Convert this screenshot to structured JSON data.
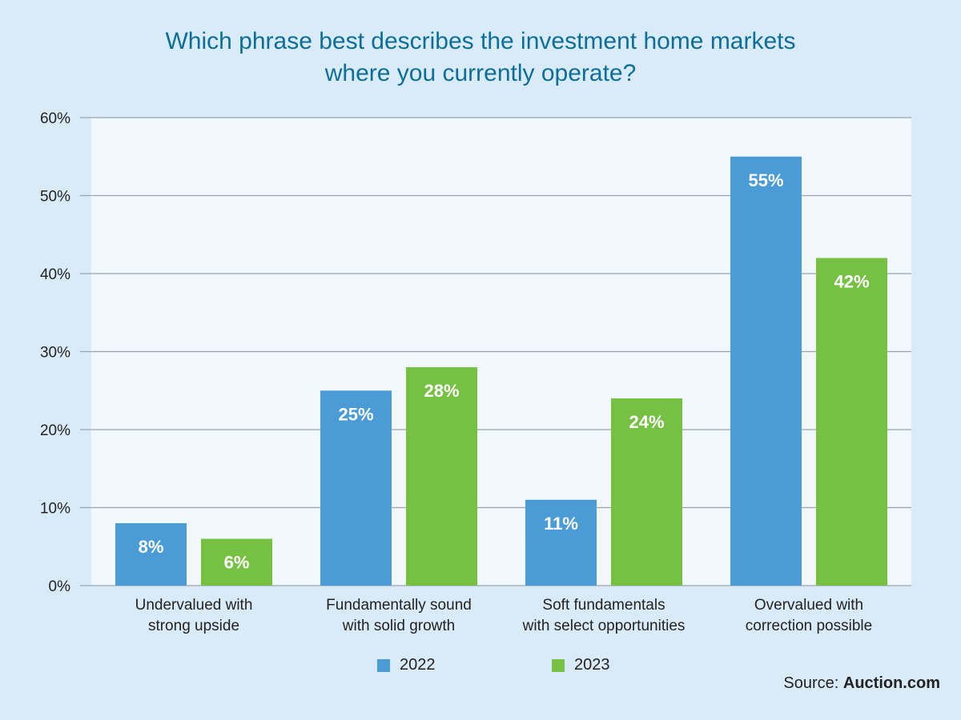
{
  "title_lines": [
    "Which phrase best describes the investment home markets",
    "where you currently operate?"
  ],
  "source": {
    "prefix": "Source:",
    "name": "Auction.com"
  },
  "colors": {
    "background": "#d9ebf9",
    "plot_bg": "#f0f7fd",
    "grid": "#9aa3ad",
    "title": "#0d6e97"
  },
  "chart_data": {
    "type": "bar",
    "title": "Which phrase best describes the investment home markets where you currently operate?",
    "categories": [
      [
        "Undervalued with",
        "strong upside"
      ],
      [
        "Fundamentally sound",
        "with solid growth"
      ],
      [
        "Soft fundamentals",
        "with select opportunities"
      ],
      [
        "Overvalued with",
        "correction possible"
      ]
    ],
    "series": [
      {
        "name": "2022",
        "color": "#4a9bd6",
        "values": [
          8,
          25,
          11,
          55
        ],
        "labels": [
          "8%",
          "25%",
          "11%",
          "55%"
        ]
      },
      {
        "name": "2023",
        "color": "#76c043",
        "values": [
          6,
          28,
          24,
          42
        ],
        "labels": [
          "6%",
          "28%",
          "24%",
          "42%"
        ]
      }
    ],
    "ylim": [
      0,
      60
    ],
    "yticks": [
      0,
      10,
      20,
      30,
      40,
      50,
      60
    ],
    "ytick_labels": [
      "0%",
      "10%",
      "20%",
      "30%",
      "40%",
      "50%",
      "60%"
    ],
    "grid": true,
    "legend_position": "bottom-center"
  }
}
